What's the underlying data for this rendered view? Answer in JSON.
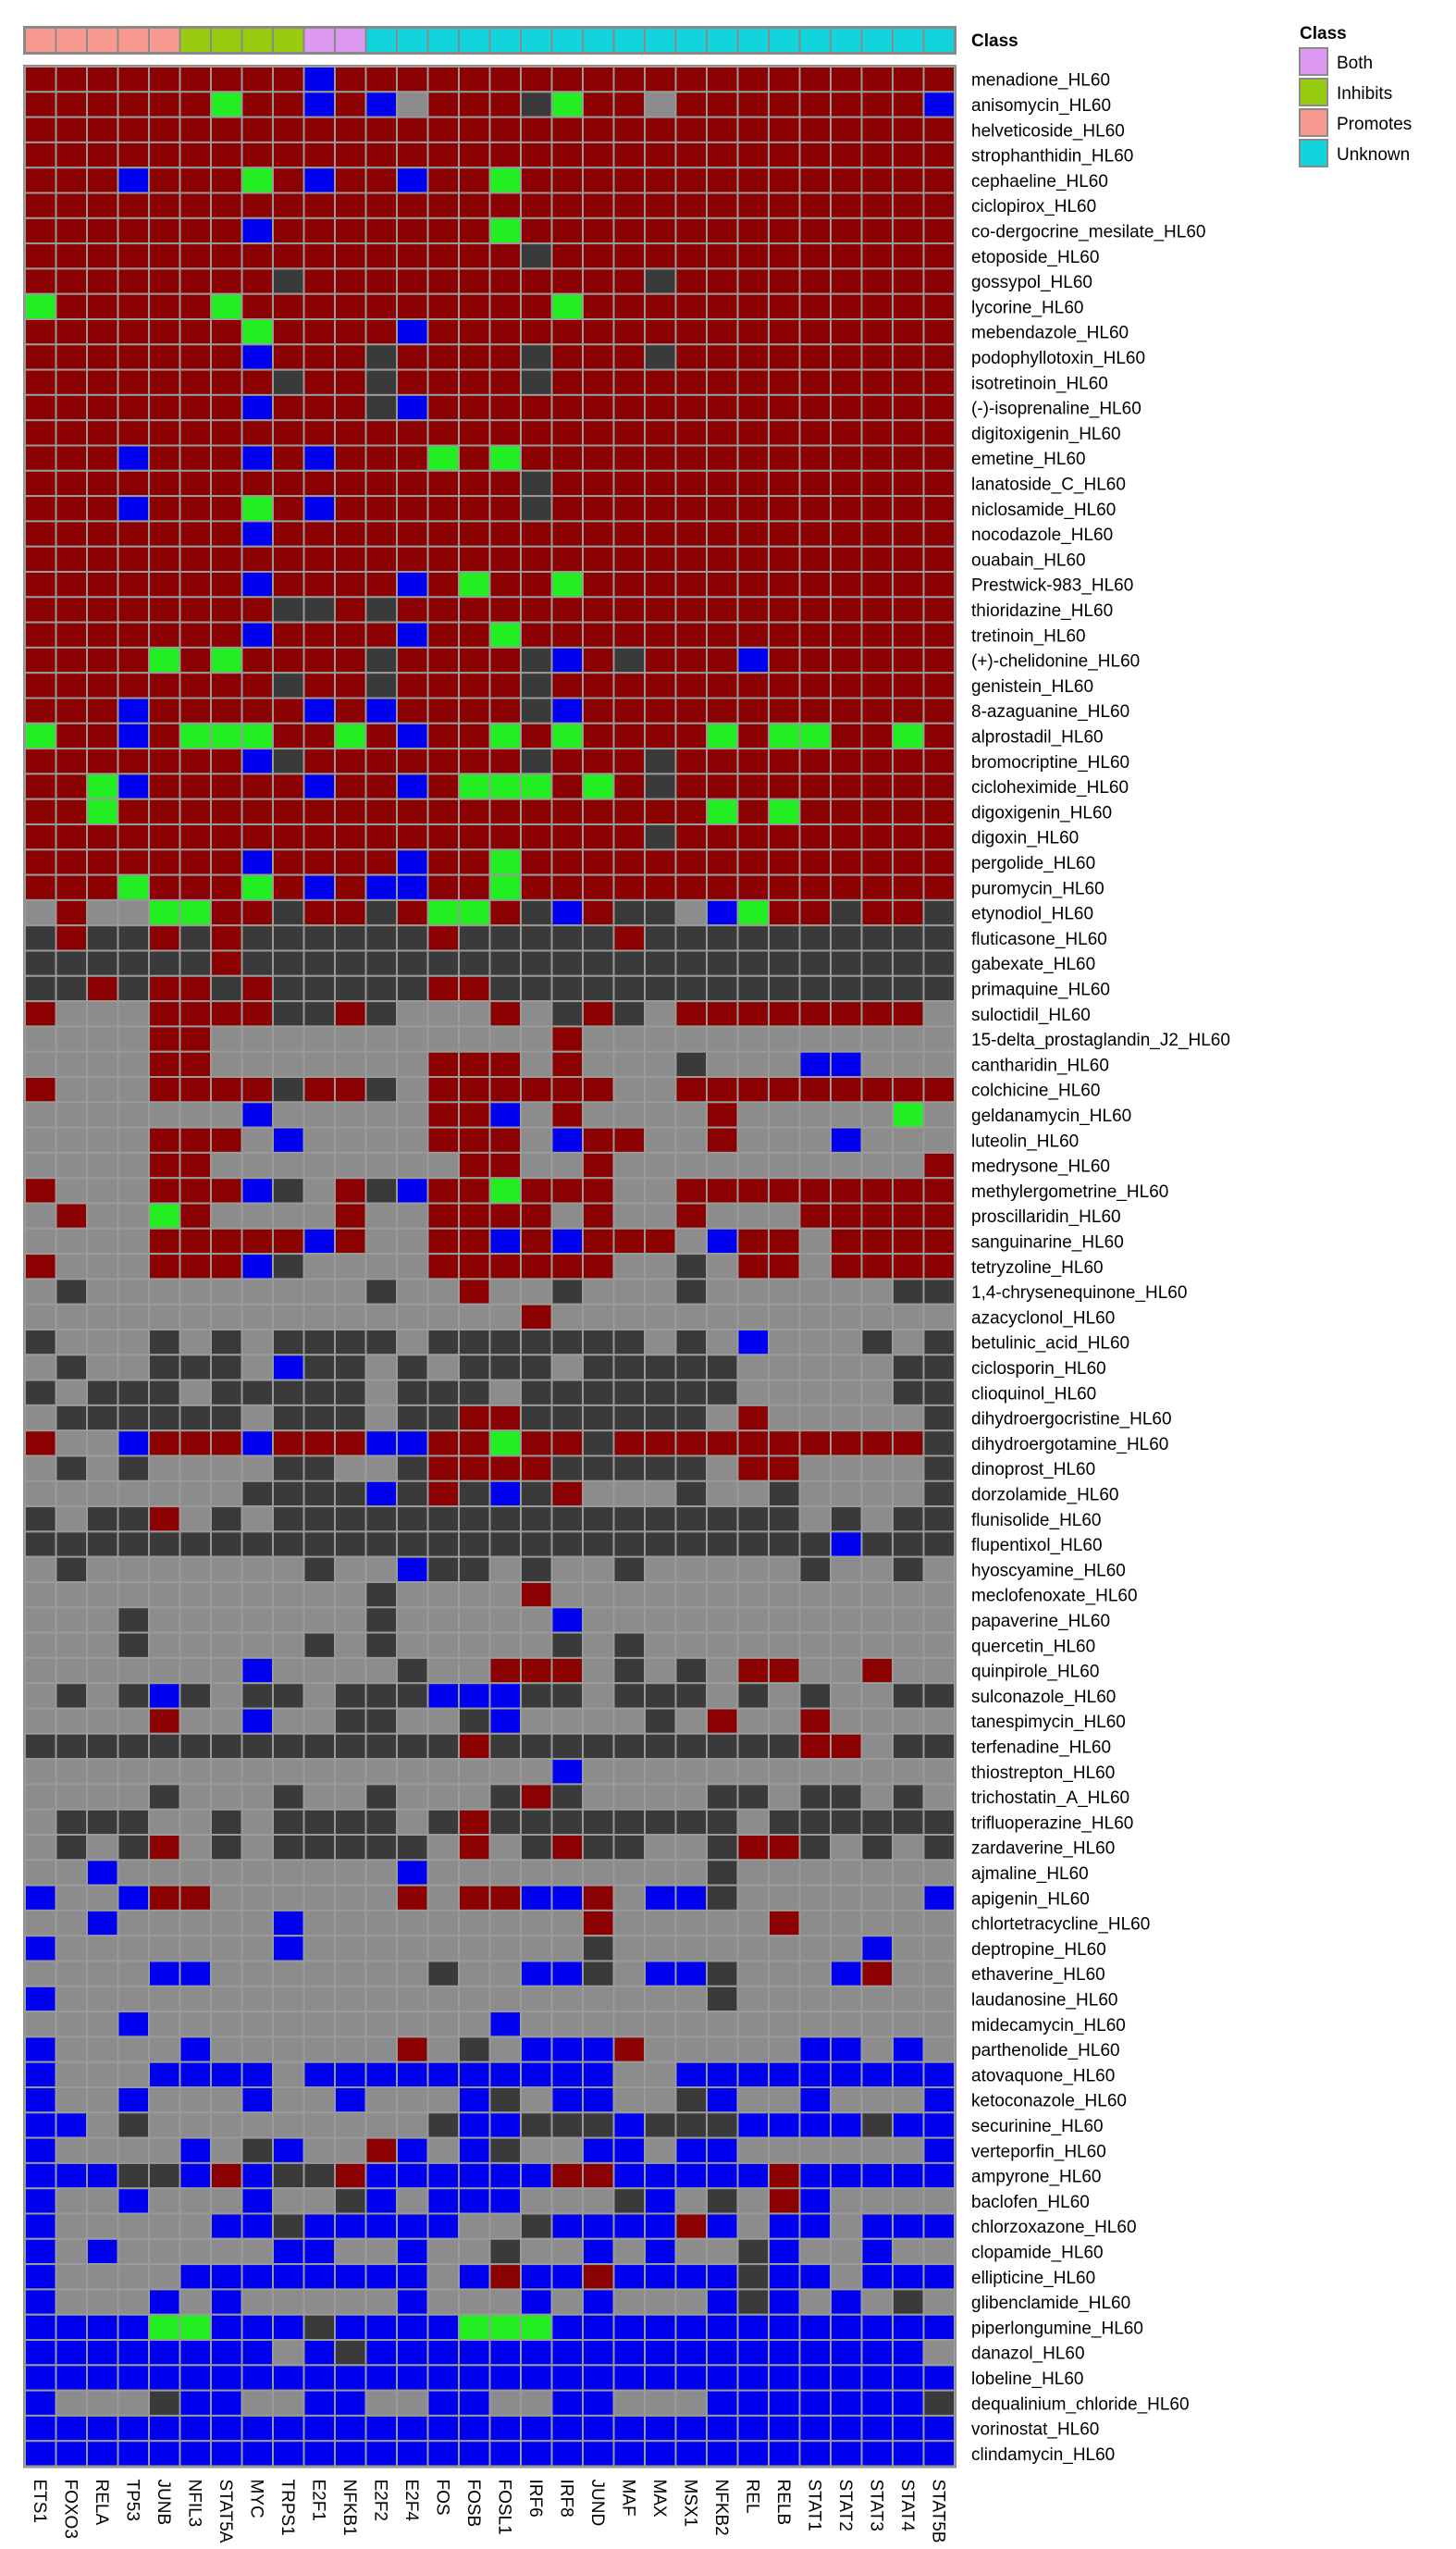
{
  "chart_data": {
    "type": "heatmap",
    "annotation_title": "Class",
    "legend": {
      "title": "Class",
      "entries": [
        {
          "label": "Both",
          "color": "#dd99f0"
        },
        {
          "label": "Inhibits",
          "color": "#99cc11"
        },
        {
          "label": "Promotes",
          "color": "#f89a90"
        },
        {
          "label": "Unknown",
          "color": "#11d4dc"
        }
      ]
    },
    "columns": [
      "ETS1",
      "FOXO3",
      "RELA",
      "TP53",
      "JUNB",
      "NFIL3",
      "STAT5A",
      "MYC",
      "TRPS1",
      "E2F1",
      "NFKB1",
      "E2F2",
      "E2F4",
      "FOS",
      "FOSB",
      "FOSL1",
      "IRF6",
      "IRF8",
      "JUND",
      "MAF",
      "MAX",
      "MSX1",
      "NFKB2",
      "REL",
      "RELB",
      "STAT1",
      "STAT2",
      "STAT3",
      "STAT4",
      "STAT5B"
    ],
    "column_class": [
      "Promotes",
      "Promotes",
      "Promotes",
      "Promotes",
      "Promotes",
      "Inhibits",
      "Inhibits",
      "Inhibits",
      "Inhibits",
      "Both",
      "Both",
      "Unknown",
      "Unknown",
      "Unknown",
      "Unknown",
      "Unknown",
      "Unknown",
      "Unknown",
      "Unknown",
      "Unknown",
      "Unknown",
      "Unknown",
      "Unknown",
      "Unknown",
      "Unknown",
      "Unknown",
      "Unknown",
      "Unknown",
      "Unknown",
      "Unknown"
    ],
    "rows": [
      "menadione_HL60",
      "anisomycin_HL60",
      "helveticoside_HL60",
      "strophanthidin_HL60",
      "cephaeline_HL60",
      "ciclopirox_HL60",
      "co-dergocrine_mesilate_HL60",
      "etoposide_HL60",
      "gossypol_HL60",
      "lycorine_HL60",
      "mebendazole_HL60",
      "podophyllotoxin_HL60",
      "isotretinoin_HL60",
      "(-)-isoprenaline_HL60",
      "digitoxigenin_HL60",
      "emetine_HL60",
      "lanatoside_C_HL60",
      "niclosamide_HL60",
      "nocodazole_HL60",
      "ouabain_HL60",
      "Prestwick-983_HL60",
      "thioridazine_HL60",
      "tretinoin_HL60",
      "(+)-chelidonine_HL60",
      "genistein_HL60",
      "8-azaguanine_HL60",
      "alprostadil_HL60",
      "bromocriptine_HL60",
      "cicloheximide_HL60",
      "digoxigenin_HL60",
      "digoxin_HL60",
      "pergolide_HL60",
      "puromycin_HL60",
      "etynodiol_HL60",
      "fluticasone_HL60",
      "gabexate_HL60",
      "primaquine_HL60",
      "suloctidil_HL60",
      "15-delta_prostaglandin_J2_HL60",
      "cantharidin_HL60",
      "colchicine_HL60",
      "geldanamycin_HL60",
      "luteolin_HL60",
      "medrysone_HL60",
      "methylergometrine_HL60",
      "proscillaridin_HL60",
      "sanguinarine_HL60",
      "tetryzoline_HL60",
      "1,4-chrysenequinone_HL60",
      "azacyclonol_HL60",
      "betulinic_acid_HL60",
      "ciclosporin_HL60",
      "clioquinol_HL60",
      "dihydroergocristine_HL60",
      "dihydroergotamine_HL60",
      "dinoprost_HL60",
      "dorzolamide_HL60",
      "flunisolide_HL60",
      "flupentixol_HL60",
      "hyoscyamine_HL60",
      "meclofenoxate_HL60",
      "papaverine_HL60",
      "quercetin_HL60",
      "quinpirole_HL60",
      "sulconazole_HL60",
      "tanespimycin_HL60",
      "terfenadine_HL60",
      "thiostrepton_HL60",
      "trichostatin_A_HL60",
      "trifluoperazine_HL60",
      "zardaverine_HL60",
      "ajmaline_HL60",
      "apigenin_HL60",
      "chlortetracycline_HL60",
      "deptropine_HL60",
      "ethaverine_HL60",
      "laudanosine_HL60",
      "midecamycin_HL60",
      "parthenolide_HL60",
      "atovaquone_HL60",
      "ketoconazole_HL60",
      "securinine_HL60",
      "verteporfin_HL60",
      "ampyrone_HL60",
      "baclofen_HL60",
      "chlorzoxazone_HL60",
      "clopamide_HL60",
      "ellipticine_HL60",
      "glibenclamide_HL60",
      "piperlongumine_HL60",
      "danazol_HL60",
      "lobeline_HL60",
      "dequalinium_chloride_HL60",
      "vorinostat_HL60",
      "clindamycin_HL60"
    ],
    "value_colors": {
      "R": "#8b0000",
      "G": "#22ee22",
      "B": "#0000f0",
      "D": "#3a3a3a",
      ".": "#8c8c8c"
    },
    "matrix": [
      "RRRRRRRRRBRRRRRRRRRRRRRRRRRRRR",
      "RRRRRRGRRBRB.RRRDGRR.RRRRRRRRB",
      "RRRRRRRRRRRRRRRRRRRRRRRRRRRRRR",
      "RRRRRRRRRRRRRRRRRRRRRRRRRRRRRR",
      "RRRBRRRGRBRRBRRGRRRRRRRRRRRRRR",
      "RRRRRRRRRRRRRRRRRRRRRRRRRRRRRR",
      "RRRRRRRBRRRRRRRGRRRRRRRRRRRRRR",
      "RRRRRRRRRRRRRRRRDRRRRRRRRRRRRR",
      "RRRRRRRRDRRRRRRRRRRRDRRRRRRRRR",
      "GRRRRRGRRRRRRRRRRGRRRRRRRRRRRR",
      "RRRRRRRGRRRRBRRRRRRRRRRRRRRRRR",
      "RRRRRRRBRRRDRRRRDRRRDRRRRRRRRR",
      "RRRRRRRRDRRDRRRRDRRRRRRRRRRRRR",
      "RRRRRRRBRRRDBRRRRRRRRRRRRRRRRR",
      "RRRRRRRRRRRRRRRRRRRRRRRRRRRRRR",
      "RRRBRRRBRBRRRGRGRRRRRRRRRRRRRR",
      "RRRRRRRRRRRRRRRRDRRRRRRRRRRRRR",
      "RRRBRRRGRBRRRRRRDRRRRRRRRRRRRR",
      "RRRRRRRBRRRRRRRRRRRRRRRRRRRRRR",
      "RRRRRRRRRRRRRRRRRRRRRRRRRRRRRR",
      "RRRRRRRBRRRRBRGRRGRRRRRRRRRRRR",
      "RRRRRRRRDDRDRRRRRRRRRRRRRRRRRR",
      "RRRRRRRBRRRRBRRGRRRRRRRRRRRRRR",
      "RRRRGRGRRRRDRRRRDBRDRRRBRRRRRR",
      "RRRRRRRRDRRDRRRRDRRRRRRRRRRRRR",
      "RRRBRRRRRBRBRRRRDBRRRRRRRRRRRR",
      "GRRBRGGGRRGRBRRGRGRRRRGRGGRRGR",
      "RRRRRRRBDRRRRRRRDRRRDRRRRRRRRR",
      "RRGBRRRRRBRRBRGGGRGRDRRRRRRRRR",
      "RRGRRRRRRRRRRRRRRRRRRRGRGRRRRR",
      "RRRRRRRRRRRRRRRRRRRRDRRRRRRRRR",
      "RRRRRRRBRRRRBRRGRRRRRRRRRRRRRR",
      "RRRGRRRGRBRBBRRGRRRRRRRRRRRRRR",
      ".R..GGRRDRRDRGGRDBRDD.BGRRDRRD",
      "DRDDRDRDDDDDDRDDDDDRDDDDDDDDDD",
      "DDDDDDRDDDDDDDDDDDDDDDDDDDDDDD",
      "DDRDRRDRDDDDDRRDDDDDDDDDDDDDDD",
      "R...RRRRDDRD...R.DRD.RRRRRRRR.",
      "....RR...........R............",
      "....RR.......RRR.R...D...BB...",
      "R...RRRRDRRD.RRRRRR..RRRRRRRRR",
      ".......B.....RRB.R....R.....G.",
      "....RRR.B....RRR.BRR..R...B...",
      "....RR........RR..R..........R",
      "R...RRRBD.RDBRRGRRR..RRRRRRRRR",
      ".R..GR....R..RRRR.R..R...RRRRR",
      "....RRRRRBR..RRBRBRRR.BRR.RRRR",
      "R...RRRBD....RRRRRR..D.RR.RRRR",
      ".D.........D..R..D...D......DD",
      "................R.............",
      "D...D.D.DDDD.DDDDDDD.D.B...D.D",
      ".D..DDD.BDD.D.DDD.DDDDD.....DD",
      "D.DDD.DDDDD.DDD.DDDDDDD.....DD",
      ".DDDDDD.DDD.DDRRDDDDDD.R.....D",
      "R..BRRRBRRRBBRRGRRDRRRRRRRRRRD",
      ".D.D....DD..DRRRRDDDDD.RR....D",
      ".......DDDDBDRDBDR...D..D....D",
      "D.DDR.D.DDDDDDDDDDDDDDDDD.D.DD",
      "DDDDDDDDDDDDDDDDDDDDDDDDDDBDDD",
      ".D.......D..BDD.D..D.....D..D.",
      "...........D....R.............",
      "...D.......D.....B............",
      "...D.....D.D.....D.D..........",
      ".......B....D..RRR.D.D.RR..R..",
      ".D.DBD.DD.DDDBBBDD.DDD.D.D..DD",
      "....R..B..DD..DB....D.R..R....",
      "DDDDDDDDDDDDDDRDDDDDDDDDDRR.DD",
      ".................B............",
      "....D...D..D...DRD....DD.DD.D.",
      ".DDD..D.DDDD.DRDDDDDDDD.DDDDDD",
      ".D.DR.D.DDDDD.R.DRDD..DRRD.D.D",
      "..B.........B.........D.......",
      "B..BRR......R.RRBBR.BBD......B",
      "..B.....B.........R.....R.....",
      "B.......B.........D........B..",
      "....BB.......D..BBD.BBD...BR..",
      "B.....................D.......",
      "...B...........B..............",
      "B....B......R.D.BBBR.....BB.B.",
      "B...BBBB.BBBBBBBBBB..BBBBBBBBB",
      "B..B...B..B...BD.BB..DB..B...B",
      "BB.D.........DBBDDDBDDDBBBBDBB",
      "B....B.DB..RB.BD..BB.BB......B",
      "BBBDDBRBDDRBBBBBBRRBBBBBRBBBBB",
      "B..B...B..DB.BBB...DB.D.RB....",
      "B.....BBDBBBBB..DBBBBRB.BB.BBB",
      "B.B.....BB..B..D..B.B..DB..B..",
      "B....BBBBBBBB.BRBBRBBBBDBB.BBB",
      "B...B.B.....B...B.B...BDB.B.D.",
      "BBBBGGBBBDBBBBGGGBBBBBBBBBBBBB",
      "BBBBBBBB.BDBBBBBBBBBBBBBBBBBB.",
      "BBBBBBBBBBBBBBBBBBBBBBBBBBBBBB",
      "B...DBB..BB..BB..BB...BBBBBBBD",
      "BBBBBBBBBBBBBBBBBBBBBBBBBBBBBB",
      "BBBBBBBBBBBBBBBBBBBBBBBBBBBBBB"
    ]
  }
}
